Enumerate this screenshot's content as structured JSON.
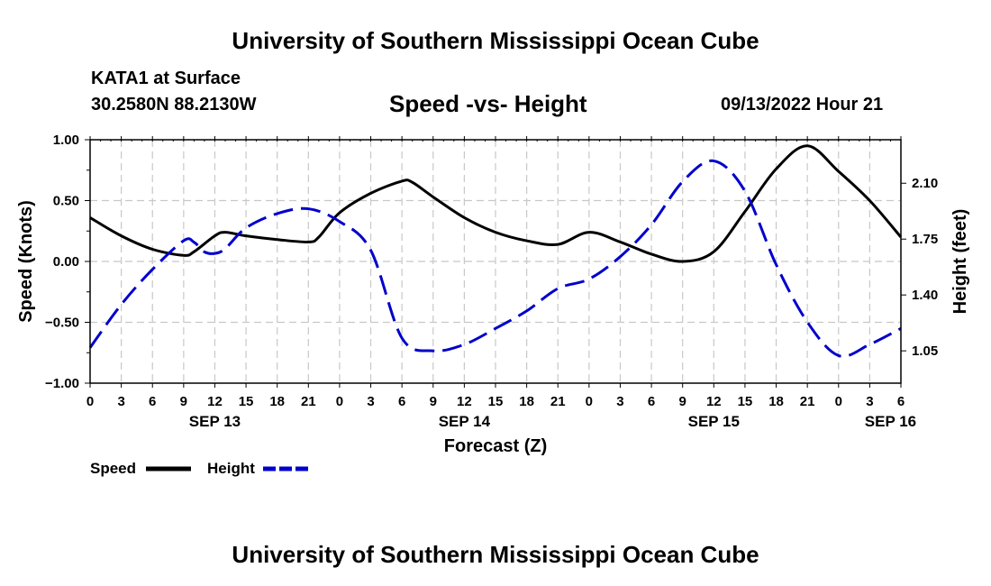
{
  "header": {
    "title": "University of Southern Mississippi Ocean Cube",
    "station": "KATA1 at Surface",
    "coords": "30.2580N  88.2130W",
    "chart_title": "Speed -vs- Height",
    "datetime": "09/13/2022 Hour 21"
  },
  "footer": {
    "title": "University of Southern Mississippi Ocean Cube"
  },
  "colors": {
    "speed": "#000000",
    "height": "#0000cc",
    "grid": "#c8c8c8"
  },
  "chart_data": {
    "type": "line",
    "title": "Speed -vs- Height",
    "xlabel": "Forecast (Z)",
    "ylabel": "Speed (Knots)",
    "y2label": "Height (feet)",
    "xlim": [
      0,
      78
    ],
    "ylim": [
      -1.0,
      1.0
    ],
    "y2lim": [
      0.8475,
      2.3725
    ],
    "x_tick_positions": [
      0,
      3,
      6,
      9,
      12,
      15,
      18,
      21,
      24,
      27,
      30,
      33,
      36,
      39,
      42,
      45,
      48,
      51,
      54,
      57,
      60,
      63,
      66,
      69,
      72,
      75,
      78
    ],
    "x_tick_labels": [
      "0",
      "3",
      "6",
      "9",
      "12",
      "15",
      "18",
      "21",
      "0",
      "3",
      "6",
      "9",
      "12",
      "15",
      "18",
      "21",
      "0",
      "3",
      "6",
      "9",
      "12",
      "15",
      "18",
      "21",
      "0",
      "3",
      "6"
    ],
    "date_labels": [
      {
        "label": "SEP 13",
        "at": 12
      },
      {
        "label": "SEP 14",
        "at": 36
      },
      {
        "label": "SEP 15",
        "at": 60
      },
      {
        "label": "SEP 16",
        "at": 77
      }
    ],
    "y_ticks": [
      {
        "value": 1.0,
        "label": "1.00"
      },
      {
        "value": 0.5,
        "label": "0.50"
      },
      {
        "value": 0.0,
        "label": "0.00"
      },
      {
        "value": -0.5,
        "label": "−0.50"
      },
      {
        "value": -1.0,
        "label": "−1.00"
      }
    ],
    "y2_ticks": [
      {
        "value": 2.1,
        "label": "2.10"
      },
      {
        "value": 1.75,
        "label": "1.75"
      },
      {
        "value": 1.4,
        "label": "1.40"
      },
      {
        "value": 1.05,
        "label": "1.05"
      }
    ],
    "series": [
      {
        "name": "Speed",
        "axis": "left",
        "style": "solid",
        "x": [
          0,
          3,
          6,
          9,
          10,
          12,
          13,
          15,
          18,
          21,
          22,
          24,
          27,
          30,
          31,
          33,
          36,
          39,
          42,
          45,
          48,
          51,
          54,
          57,
          60,
          63,
          66,
          69,
          72,
          75,
          78
        ],
        "values": [
          0.36,
          0.21,
          0.1,
          0.05,
          0.08,
          0.21,
          0.24,
          0.21,
          0.18,
          0.16,
          0.2,
          0.4,
          0.56,
          0.66,
          0.65,
          0.53,
          0.36,
          0.24,
          0.17,
          0.14,
          0.24,
          0.16,
          0.06,
          0.0,
          0.08,
          0.41,
          0.76,
          0.95,
          0.74,
          0.5,
          0.2
        ]
      },
      {
        "name": "Height",
        "axis": "right",
        "style": "dashed",
        "x": [
          0,
          3,
          6,
          9,
          10,
          11,
          12,
          13,
          15,
          18,
          21,
          24,
          27,
          30,
          33,
          36,
          39,
          42,
          45,
          48,
          51,
          54,
          57,
          60,
          63,
          66,
          69,
          72,
          75,
          78
        ],
        "values": [
          1.07,
          1.34,
          1.56,
          1.74,
          1.73,
          1.67,
          1.66,
          1.69,
          1.82,
          1.91,
          1.94,
          1.86,
          1.68,
          1.13,
          1.05,
          1.09,
          1.19,
          1.3,
          1.44,
          1.5,
          1.64,
          1.84,
          2.11,
          2.24,
          2.05,
          1.59,
          1.23,
          1.02,
          1.09,
          1.19
        ]
      }
    ],
    "legend": [
      {
        "label": "Speed",
        "style": "solid"
      },
      {
        "label": "Height",
        "style": "dashed"
      }
    ],
    "grid": true,
    "legend_position": "bottom-left"
  }
}
